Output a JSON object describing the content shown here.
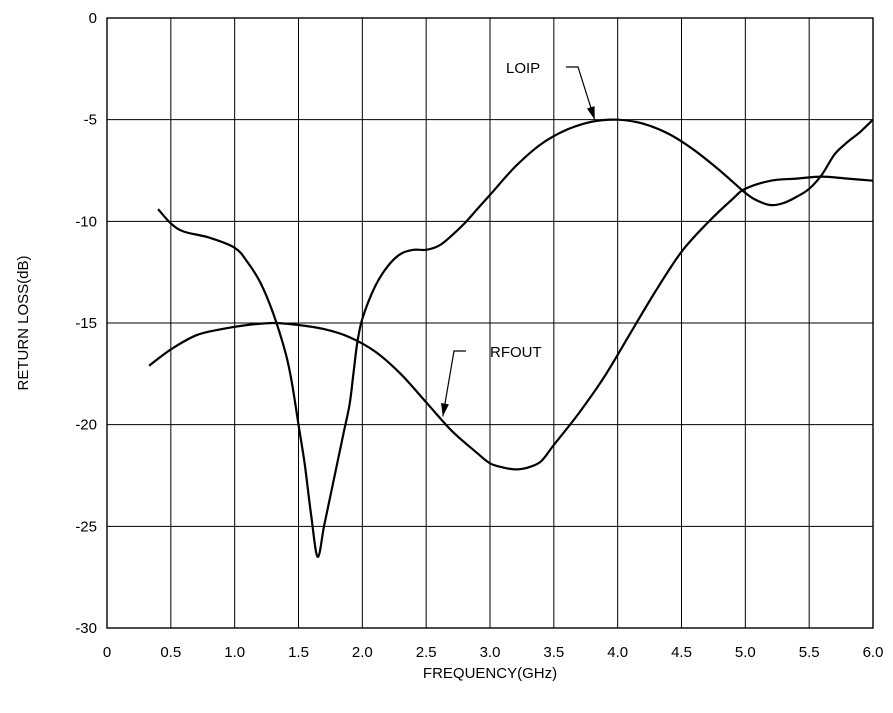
{
  "chart_data": {
    "type": "line",
    "title": "",
    "xlabel": "FREQUENCY(GHz)",
    "ylabel": "RETURN LOSS(dB)",
    "xlim": [
      0,
      6.0
    ],
    "ylim": [
      -30,
      0
    ],
    "x_ticks": [
      "0",
      "0.5",
      "1.0",
      "1.5",
      "2.0",
      "2.5",
      "3.0",
      "3.5",
      "4.0",
      "4.5",
      "5.0",
      "5.5",
      "6.0"
    ],
    "y_ticks": [
      "0",
      "-5",
      "-10",
      "-15",
      "-20",
      "-25",
      "-30"
    ],
    "grid": true,
    "series": [
      {
        "name": "LOIP",
        "x": [
          0.4,
          0.5,
          0.6,
          0.8,
          1.0,
          1.1,
          1.2,
          1.3,
          1.4,
          1.45,
          1.5,
          1.55,
          1.6,
          1.65,
          1.7,
          1.75,
          1.8,
          1.85,
          1.9,
          1.93,
          1.96,
          2.0,
          2.1,
          2.2,
          2.3,
          2.4,
          2.5,
          2.6,
          2.7,
          2.8,
          2.9,
          3.0,
          3.2,
          3.4,
          3.6,
          3.8,
          4.0,
          4.2,
          4.4,
          4.6,
          4.8,
          5.0,
          5.1,
          5.2,
          5.3,
          5.4,
          5.5,
          5.6,
          5.7,
          5.8,
          5.9,
          6.0
        ],
        "y": [
          -9.4,
          -10.1,
          -10.5,
          -10.8,
          -11.3,
          -12.0,
          -13.0,
          -14.5,
          -16.5,
          -18.0,
          -20.0,
          -22.0,
          -24.5,
          -26.5,
          -25.0,
          -23.5,
          -22.0,
          -20.5,
          -19.0,
          -17.5,
          -16.0,
          -14.8,
          -13.2,
          -12.2,
          -11.6,
          -11.4,
          -11.4,
          -11.2,
          -10.7,
          -10.1,
          -9.4,
          -8.7,
          -7.3,
          -6.2,
          -5.5,
          -5.1,
          -5.0,
          -5.2,
          -5.7,
          -6.5,
          -7.5,
          -8.6,
          -9.0,
          -9.2,
          -9.1,
          -8.8,
          -8.4,
          -7.7,
          -6.7,
          -6.1,
          -5.6,
          -5.0
        ]
      },
      {
        "name": "RFOUT",
        "x": [
          0.33,
          0.5,
          0.7,
          0.9,
          1.1,
          1.3,
          1.5,
          1.7,
          1.9,
          2.1,
          2.3,
          2.5,
          2.7,
          2.9,
          3.0,
          3.1,
          3.2,
          3.3,
          3.4,
          3.5,
          3.7,
          3.9,
          4.1,
          4.3,
          4.5,
          4.7,
          4.9,
          5.0,
          5.2,
          5.4,
          5.6,
          5.8,
          6.0
        ],
        "y": [
          -17.1,
          -16.3,
          -15.6,
          -15.3,
          -15.1,
          -15.0,
          -15.1,
          -15.3,
          -15.7,
          -16.4,
          -17.5,
          -18.9,
          -20.3,
          -21.4,
          -21.9,
          -22.1,
          -22.2,
          -22.1,
          -21.8,
          -21.0,
          -19.4,
          -17.6,
          -15.5,
          -13.4,
          -11.5,
          -10.1,
          -8.9,
          -8.4,
          -8.0,
          -7.9,
          -7.8,
          -7.9,
          -8.0
        ]
      }
    ],
    "annotations": [
      {
        "text": "LOIP",
        "series": "LOIP",
        "arrow_to": [
          3.82,
          -5.0
        ]
      },
      {
        "text": "RFOUT",
        "series": "RFOUT",
        "arrow_to": [
          2.63,
          -19.6
        ]
      }
    ]
  }
}
